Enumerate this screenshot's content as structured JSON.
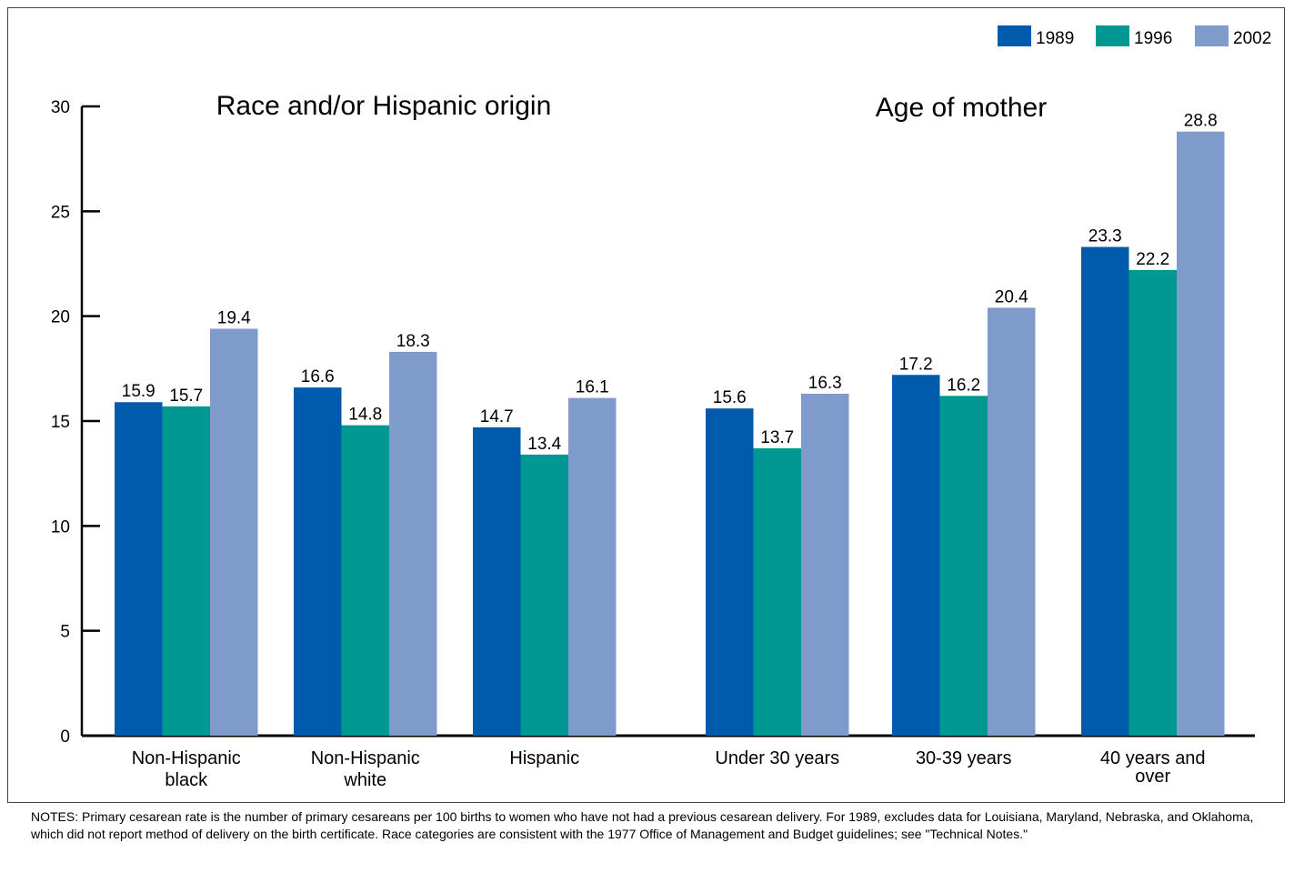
{
  "chart_data": {
    "type": "bar",
    "group_headings": [
      "Race and/or Hispanic origin",
      "Age of mother"
    ],
    "categories": [
      [
        "Non-Hispanic",
        "black"
      ],
      [
        "Non-Hispanic",
        "white"
      ],
      [
        "Hispanic"
      ],
      [
        "Under 30 years"
      ],
      [
        "30-39 years"
      ],
      [
        "40 years and",
        "over"
      ]
    ],
    "category_group": [
      0,
      0,
      0,
      1,
      1,
      1
    ],
    "series": [
      {
        "name": "1989",
        "color": "#005bac",
        "values": [
          15.9,
          16.6,
          14.7,
          15.6,
          17.2,
          23.3
        ],
        "labels": [
          "15.9",
          "16.6",
          "14.7",
          "15.6",
          "17.2",
          "23.3"
        ]
      },
      {
        "name": "1996",
        "color": "#009891",
        "values": [
          15.7,
          14.8,
          13.4,
          13.7,
          16.2,
          22.2
        ],
        "labels": [
          "15.7",
          "14.8",
          "13.4",
          "13.7",
          "16.2",
          "22.2"
        ]
      },
      {
        "name": "2002",
        "color": "#7f9bcb",
        "values": [
          19.4,
          18.3,
          16.1,
          16.3,
          20.4,
          28.8
        ],
        "labels": [
          "19.4",
          "18.3",
          "16.1",
          "16.3",
          "20.4",
          "28.8"
        ]
      }
    ],
    "yticks": [
      "0",
      "5",
      "10",
      "15",
      "20",
      "25",
      "30"
    ],
    "ylim": [
      0,
      30
    ],
    "legend_position": "top-right",
    "grid": false
  },
  "notes": "NOTES: Primary cesarean rate is the number of primary cesareans per 100 births to women who have not had a previous cesarean delivery. For 1989, excludes data for Louisiana, Maryland, Nebraska, and Oklahoma, which did not report method of delivery on the birth certificate. Race categories are consistent with the 1977 Office of Management and Budget guidelines; see \"Technical Notes.\""
}
